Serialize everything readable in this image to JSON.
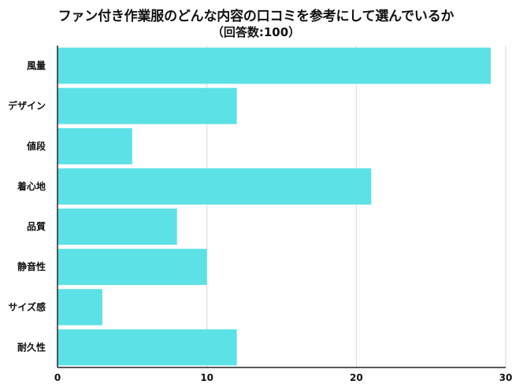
{
  "title": "ファン付き作業服のどんな内容の口コミを参考にして選んでいるか",
  "subtitle": "（回答数:100）",
  "colors": {
    "bar": "#5ce1e6",
    "grid": "#d9d9d9",
    "axis": "#222222"
  },
  "chart_data": {
    "type": "bar",
    "orientation": "horizontal",
    "categories": [
      "風量",
      "デザイン",
      "値段",
      "着心地",
      "品質",
      "静音性",
      "サイズ感",
      "耐久性"
    ],
    "values": [
      29,
      12,
      5,
      21,
      8,
      10,
      3,
      12
    ],
    "xlim": [
      0,
      30
    ],
    "xticks": [
      "0",
      "10",
      "20",
      "30"
    ],
    "grid": true,
    "legend": false
  }
}
